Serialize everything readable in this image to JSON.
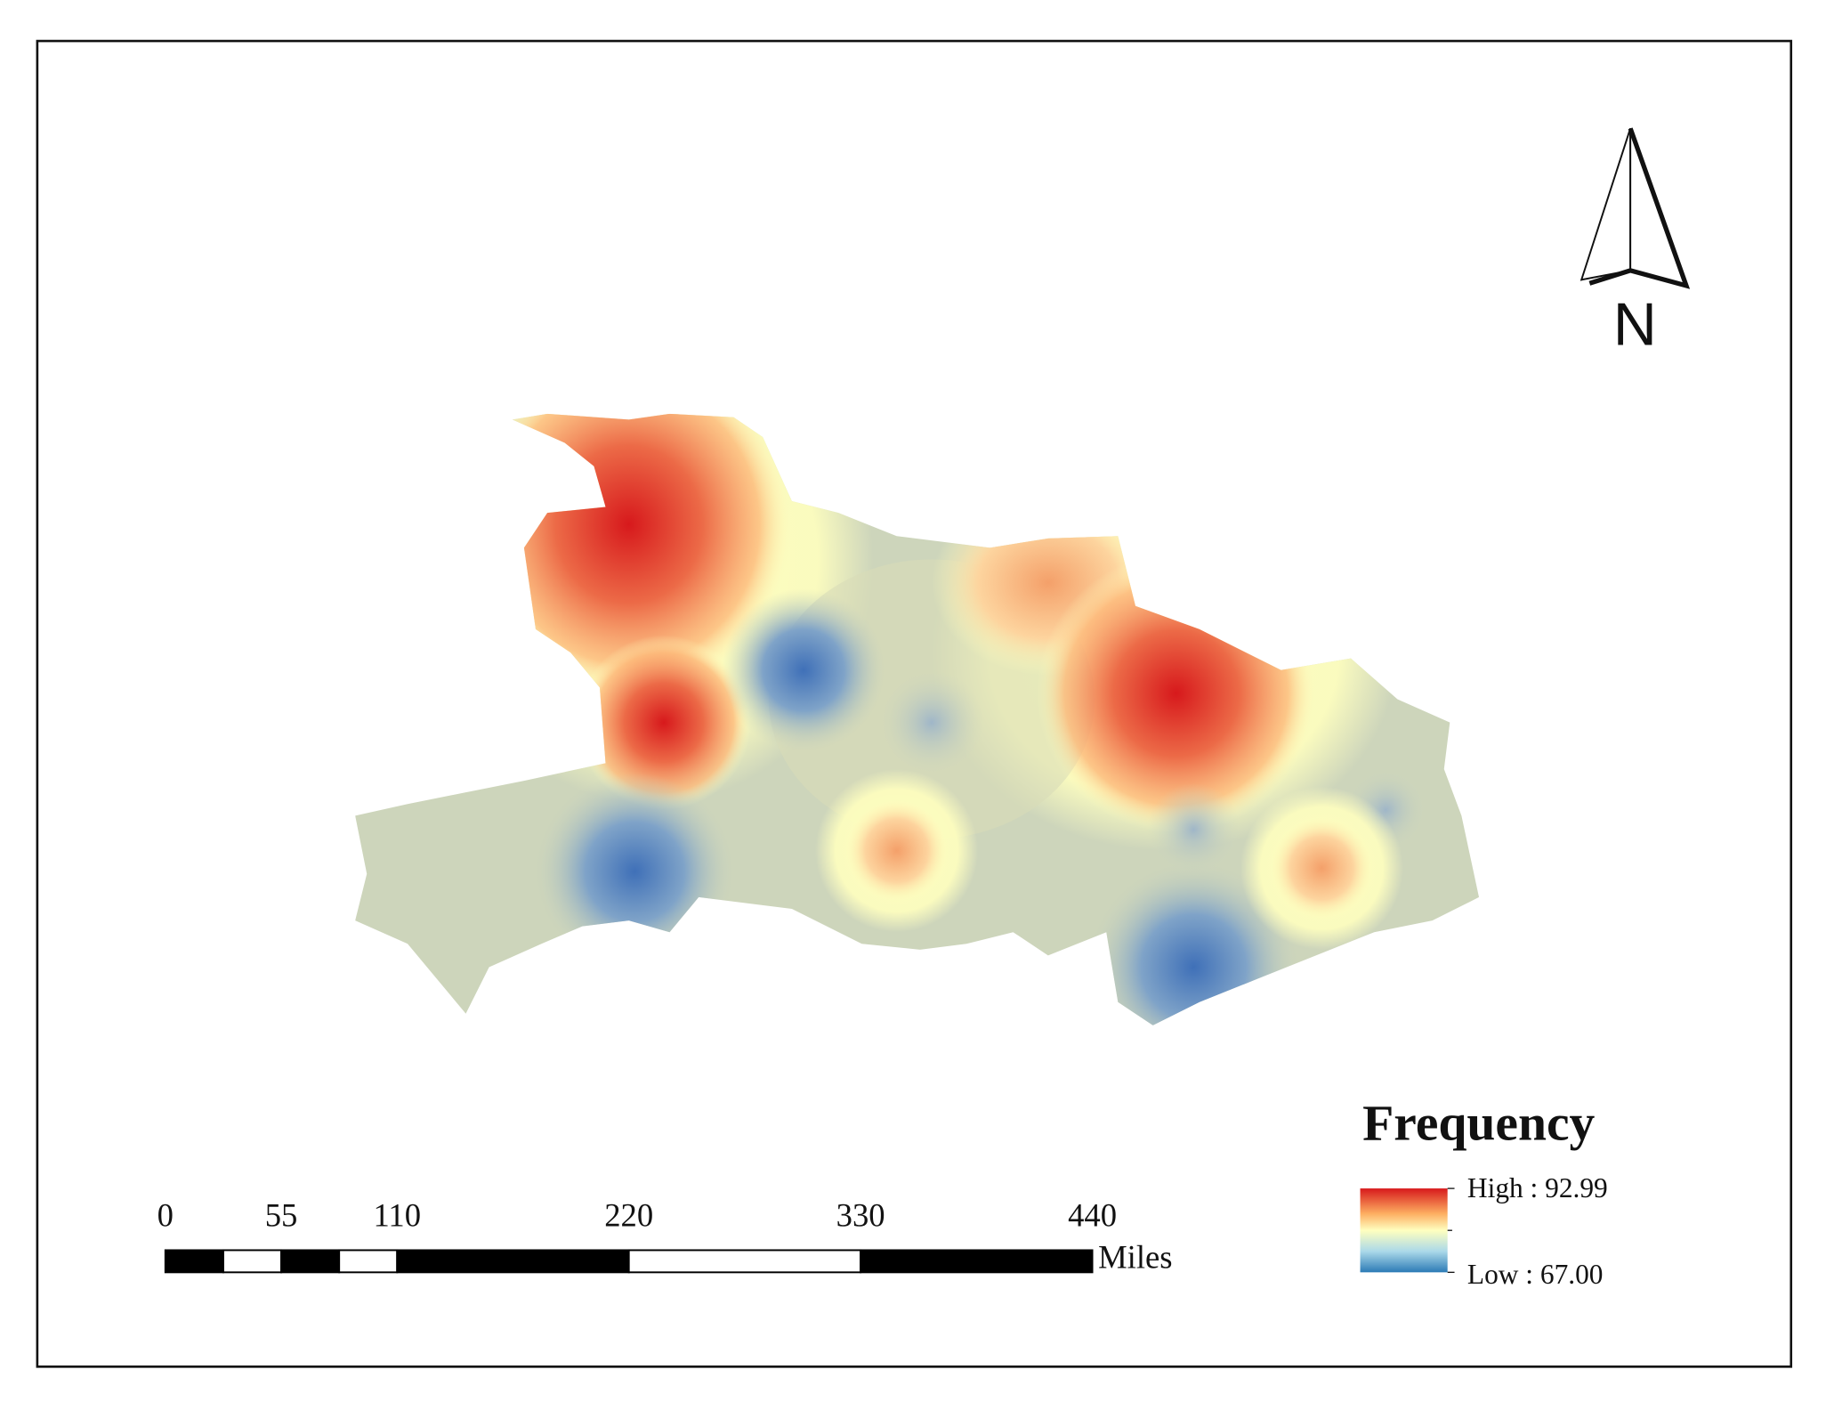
{
  "map": {
    "north_arrow": "N",
    "legend": {
      "title": "Frequency",
      "high": "High : 92.99",
      "low": "Low : 67.00"
    },
    "scale_bar": {
      "ticks": [
        0,
        55,
        110,
        220,
        330,
        440
      ],
      "unit": "Miles"
    }
  }
}
